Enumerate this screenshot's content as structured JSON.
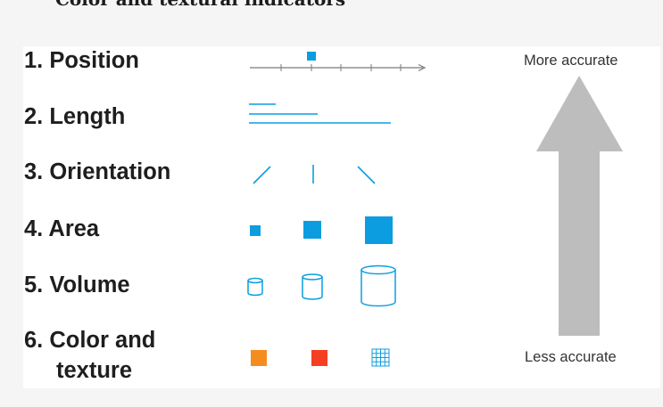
{
  "heading": "Color and textural indicators",
  "channels": [
    {
      "label": "1. Position"
    },
    {
      "label": "2. Length"
    },
    {
      "label": "3. Orientation"
    },
    {
      "label": "4. Area"
    },
    {
      "label": "5. Volume"
    },
    {
      "label_line1": "6. Color and",
      "label_line2": "texture"
    }
  ],
  "scale": {
    "top_label": "More accurate",
    "bottom_label": "Less accurate"
  },
  "colors": {
    "blue": "#0b9de0",
    "arrow": "#bdbdbd",
    "orange": "#f58c1f",
    "red": "#f43f22",
    "axis": "#7a7a7a"
  }
}
